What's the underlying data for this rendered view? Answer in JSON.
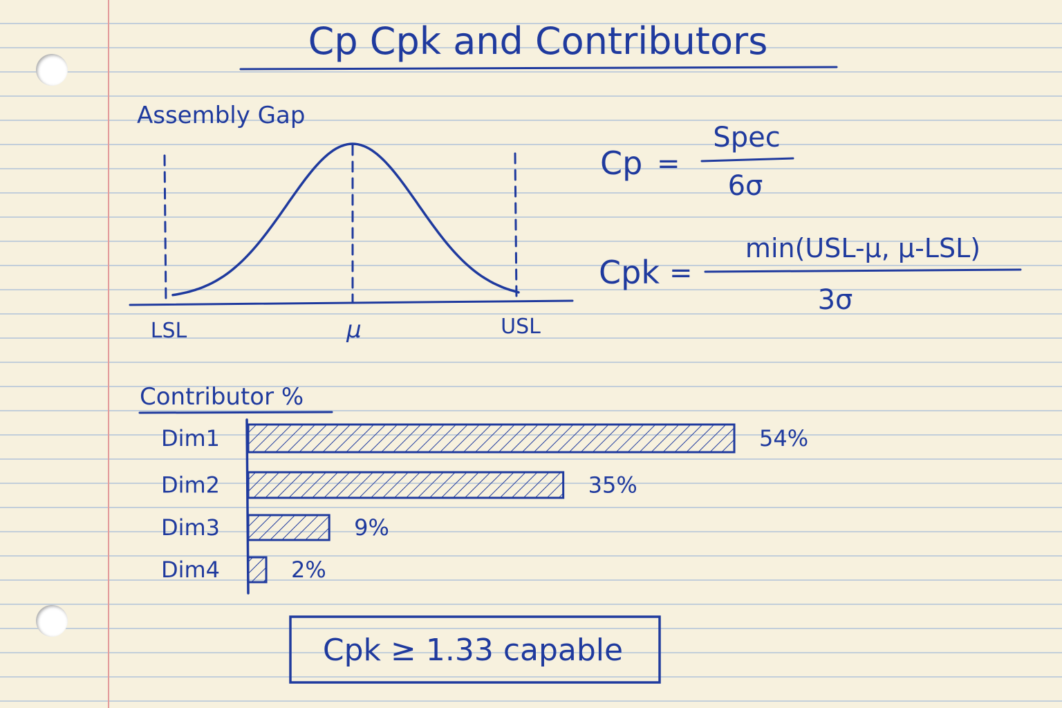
{
  "title": "Cp Cpk and Contributors",
  "distribution": {
    "title": "Assembly Gap",
    "labels": {
      "lsl": "LSL",
      "mean": "μ",
      "usl": "USL"
    }
  },
  "formulas": {
    "cp": {
      "lhs": "Cp",
      "eq": "=",
      "numerator": "Spec",
      "denominator": "6σ"
    },
    "cpk": {
      "lhs": "Cpk",
      "eq": "=",
      "numerator": "min(USL-μ, μ-LSL)",
      "denominator": "3σ"
    }
  },
  "contributors": {
    "title": "Contributor %",
    "items": [
      {
        "label": "Dim1",
        "value": 54,
        "value_label": "54%"
      },
      {
        "label": "Dim2",
        "value": 35,
        "value_label": "35%"
      },
      {
        "label": "Dim3",
        "value": 9,
        "value_label": "9%"
      },
      {
        "label": "Dim4",
        "value": 2,
        "value_label": "2%"
      }
    ]
  },
  "conclusion": "Cpk ≥ 1.33 capable",
  "colors": {
    "ink": "#1f3a9e",
    "paper": "#f7f1de",
    "margin": "#e39a9a",
    "rule": "#96b2d7"
  }
}
